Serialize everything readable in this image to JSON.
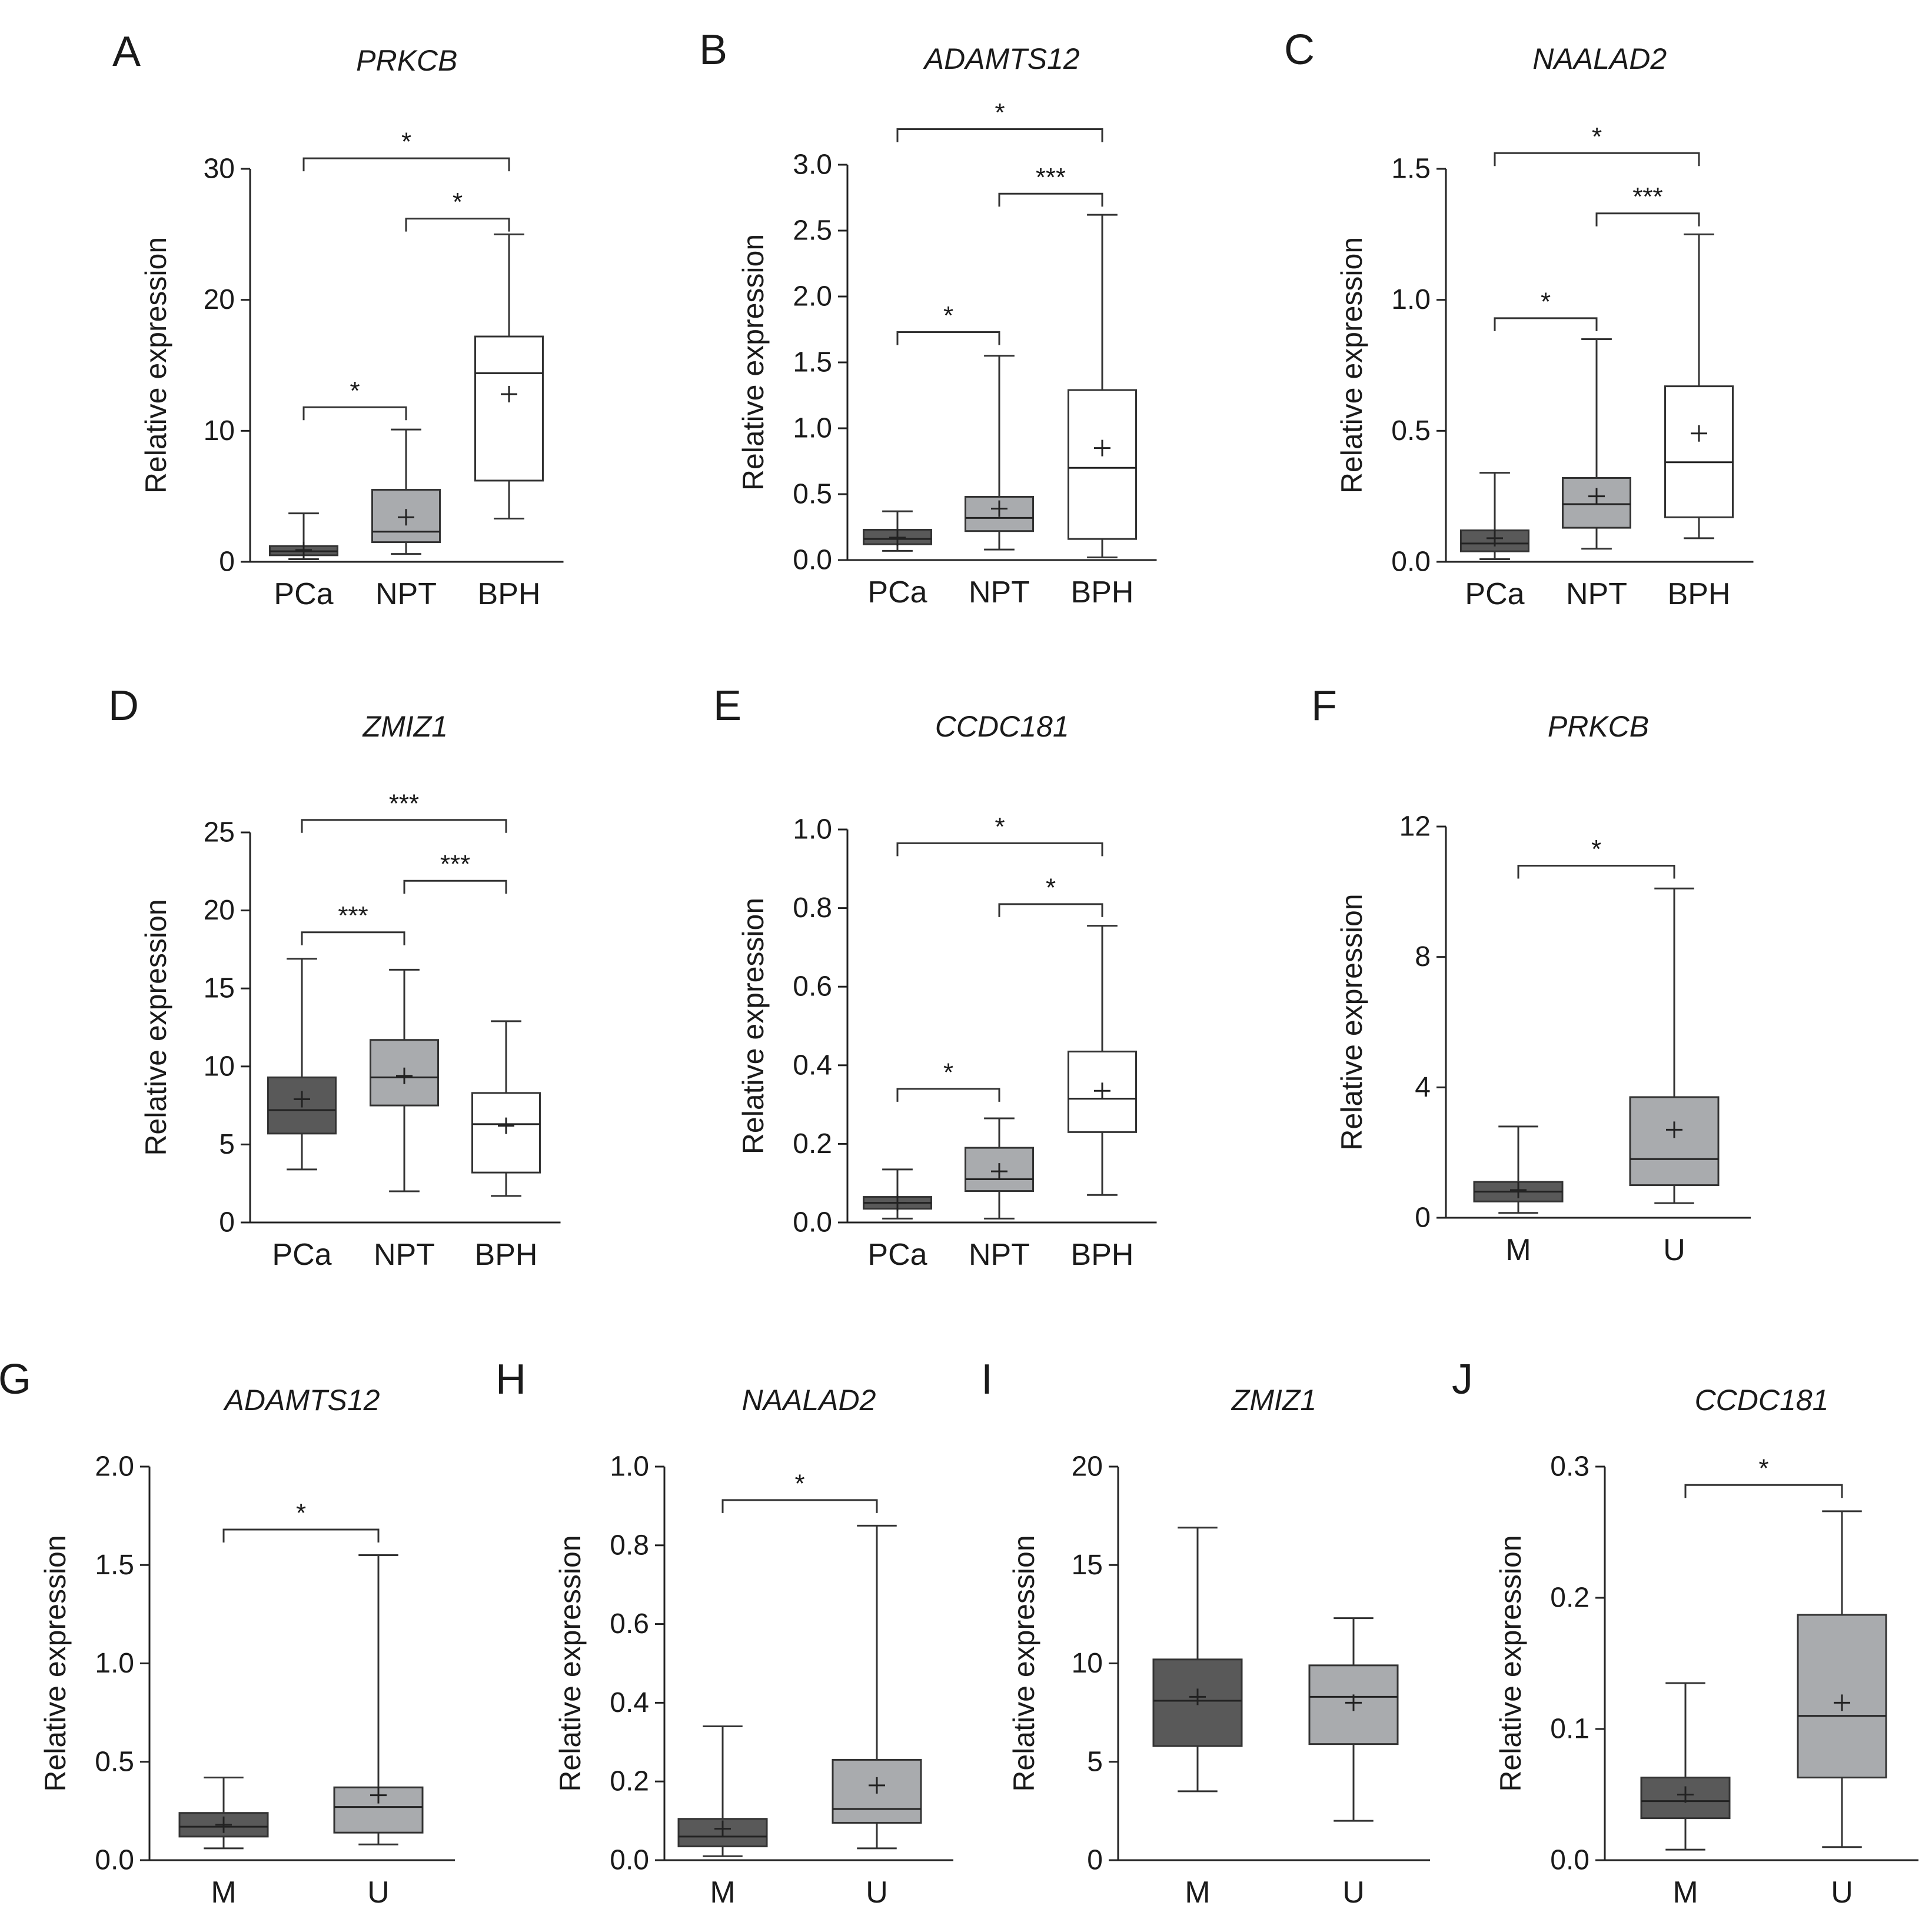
{
  "figure": {
    "y_axis_label": "Relative expression",
    "colors": {
      "PCa": "#595959",
      "NPT": "#a9abae",
      "BPH": "#ffffff",
      "M": "#595959",
      "U": "#a9abae"
    }
  },
  "chart_data": [
    {
      "panel": "A",
      "type": "box",
      "title": "PRKCB",
      "ylabel": "Relative expression",
      "ylim": [
        0,
        30
      ],
      "yticks": [
        "0",
        "10",
        "20",
        "30"
      ],
      "ytick_values": [
        0,
        10,
        20,
        30
      ],
      "categories": [
        "PCa",
        "NPT",
        "BPH"
      ],
      "boxes": [
        {
          "min": 0.2,
          "q1": 0.5,
          "median": 0.8,
          "q3": 1.2,
          "max": 3.7,
          "mean": 0.9
        },
        {
          "min": 0.6,
          "q1": 1.5,
          "median": 2.3,
          "q3": 5.5,
          "max": 10.1,
          "mean": 3.4
        },
        {
          "min": 3.3,
          "q1": 6.2,
          "median": 14.4,
          "q3": 17.2,
          "max": 25.0,
          "mean": 12.8
        }
      ],
      "significance": [
        {
          "from": 0,
          "to": 1,
          "label": "*",
          "level": 11.8
        },
        {
          "from": 1,
          "to": 2,
          "label": "*",
          "level": 26.2
        },
        {
          "from": 0,
          "to": 2,
          "label": "*",
          "level": 30.8
        }
      ]
    },
    {
      "panel": "B",
      "type": "box",
      "title": "ADAMTS12",
      "ylabel": "Relative expression",
      "ylim": [
        0,
        3.0
      ],
      "yticks": [
        "0.0",
        "0.5",
        "1.0",
        "1.5",
        "2.0",
        "2.5",
        "3.0"
      ],
      "ytick_values": [
        0,
        0.5,
        1.0,
        1.5,
        2.0,
        2.5,
        3.0
      ],
      "categories": [
        "PCa",
        "NPT",
        "BPH"
      ],
      "boxes": [
        {
          "min": 0.07,
          "q1": 0.12,
          "median": 0.16,
          "q3": 0.23,
          "max": 0.37,
          "mean": 0.17
        },
        {
          "min": 0.08,
          "q1": 0.22,
          "median": 0.32,
          "q3": 0.48,
          "max": 1.55,
          "mean": 0.39
        },
        {
          "min": 0.02,
          "q1": 0.16,
          "median": 0.7,
          "q3": 1.29,
          "max": 2.62,
          "mean": 0.85
        }
      ],
      "significance": [
        {
          "from": 0,
          "to": 1,
          "label": "*",
          "level": 1.73
        },
        {
          "from": 1,
          "to": 2,
          "label": "***",
          "level": 2.78
        },
        {
          "from": 0,
          "to": 2,
          "label": "*",
          "level": 3.27
        }
      ]
    },
    {
      "panel": "C",
      "type": "box",
      "title": "NAALAD2",
      "ylabel": "Relative expression",
      "ylim": [
        0,
        1.5
      ],
      "yticks": [
        "0.0",
        "0.5",
        "1.0",
        "1.5"
      ],
      "ytick_values": [
        0,
        0.5,
        1.0,
        1.5
      ],
      "categories": [
        "PCa",
        "NPT",
        "BPH"
      ],
      "boxes": [
        {
          "min": 0.01,
          "q1": 0.04,
          "median": 0.07,
          "q3": 0.12,
          "max": 0.34,
          "mean": 0.09
        },
        {
          "min": 0.05,
          "q1": 0.13,
          "median": 0.22,
          "q3": 0.32,
          "max": 0.85,
          "mean": 0.25
        },
        {
          "min": 0.09,
          "q1": 0.17,
          "median": 0.38,
          "q3": 0.67,
          "max": 1.25,
          "mean": 0.49
        }
      ],
      "significance": [
        {
          "from": 0,
          "to": 1,
          "label": "*",
          "level": 0.93
        },
        {
          "from": 1,
          "to": 2,
          "label": "***",
          "level": 1.33
        },
        {
          "from": 0,
          "to": 2,
          "label": "*",
          "level": 1.56
        }
      ]
    },
    {
      "panel": "D",
      "type": "box",
      "title": "ZMIZ1",
      "ylabel": "Relative expression",
      "ylim": [
        0,
        25
      ],
      "yticks": [
        "0",
        "5",
        "10",
        "15",
        "20",
        "25"
      ],
      "ytick_values": [
        0,
        5,
        10,
        15,
        20,
        25
      ],
      "categories": [
        "PCa",
        "NPT",
        "BPH"
      ],
      "boxes": [
        {
          "min": 3.4,
          "q1": 5.7,
          "median": 7.2,
          "q3": 9.3,
          "max": 16.9,
          "mean": 7.9
        },
        {
          "min": 2.0,
          "q1": 7.5,
          "median": 9.3,
          "q3": 11.7,
          "max": 16.2,
          "mean": 9.4
        },
        {
          "min": 1.7,
          "q1": 3.2,
          "median": 6.3,
          "q3": 8.3,
          "max": 12.9,
          "mean": 6.2
        }
      ],
      "significance": [
        {
          "from": 0,
          "to": 1,
          "label": "***",
          "level": 18.6
        },
        {
          "from": 1,
          "to": 2,
          "label": "***",
          "level": 21.9
        },
        {
          "from": 0,
          "to": 2,
          "label": "***",
          "level": 25.8
        }
      ]
    },
    {
      "panel": "E",
      "type": "box",
      "title": "CCDC181",
      "ylabel": "Relative expression",
      "ylim": [
        0,
        1.0
      ],
      "yticks": [
        "0.0",
        "0.2",
        "0.4",
        "0.6",
        "0.8",
        "1.0"
      ],
      "ytick_values": [
        0,
        0.2,
        0.4,
        0.6,
        0.8,
        1.0
      ],
      "categories": [
        "PCa",
        "NPT",
        "BPH"
      ],
      "boxes": [
        {
          "min": 0.01,
          "q1": 0.035,
          "median": 0.05,
          "q3": 0.065,
          "max": 0.135,
          "mean": 0.05
        },
        {
          "min": 0.01,
          "q1": 0.08,
          "median": 0.11,
          "q3": 0.19,
          "max": 0.265,
          "mean": 0.13
        },
        {
          "min": 0.07,
          "q1": 0.23,
          "median": 0.315,
          "q3": 0.435,
          "max": 0.755,
          "mean": 0.335
        }
      ],
      "significance": [
        {
          "from": 0,
          "to": 1,
          "label": "*",
          "level": 0.34
        },
        {
          "from": 1,
          "to": 2,
          "label": "*",
          "level": 0.81
        },
        {
          "from": 0,
          "to": 2,
          "label": "*",
          "level": 0.965
        }
      ]
    },
    {
      "panel": "F",
      "type": "box",
      "title": "PRKCB",
      "ylabel": "Relative expression",
      "ylim": [
        0,
        12
      ],
      "yticks": [
        "0",
        "4",
        "8",
        "12"
      ],
      "ytick_values": [
        0,
        4,
        8,
        12
      ],
      "categories": [
        "M",
        "U"
      ],
      "boxes": [
        {
          "min": 0.15,
          "q1": 0.5,
          "median": 0.8,
          "q3": 1.1,
          "max": 2.8,
          "mean": 0.85
        },
        {
          "min": 0.45,
          "q1": 1.0,
          "median": 1.8,
          "q3": 3.7,
          "max": 10.1,
          "mean": 2.7
        }
      ],
      "significance": [
        {
          "from": 0,
          "to": 1,
          "label": "*",
          "level": 10.8
        }
      ]
    },
    {
      "panel": "G",
      "type": "box",
      "title": "ADAMTS12",
      "ylabel": "Relative expression",
      "ylim": [
        0,
        2.0
      ],
      "yticks": [
        "0.0",
        "0.5",
        "1.0",
        "1.5",
        "2.0"
      ],
      "ytick_values": [
        0,
        0.5,
        1.0,
        1.5,
        2.0
      ],
      "categories": [
        "M",
        "U"
      ],
      "boxes": [
        {
          "min": 0.06,
          "q1": 0.12,
          "median": 0.17,
          "q3": 0.24,
          "max": 0.42,
          "mean": 0.18
        },
        {
          "min": 0.08,
          "q1": 0.14,
          "median": 0.27,
          "q3": 0.37,
          "max": 1.55,
          "mean": 0.33
        }
      ],
      "significance": [
        {
          "from": 0,
          "to": 1,
          "label": "*",
          "level": 1.68
        }
      ]
    },
    {
      "panel": "H",
      "type": "box",
      "title": "NAALAD2",
      "ylabel": "Relative expression",
      "ylim": [
        0,
        1.0
      ],
      "yticks": [
        "0.0",
        "0.2",
        "0.4",
        "0.6",
        "0.8",
        "1.0"
      ],
      "ytick_values": [
        0,
        0.2,
        0.4,
        0.6,
        0.8,
        1.0
      ],
      "categories": [
        "M",
        "U"
      ],
      "boxes": [
        {
          "min": 0.01,
          "q1": 0.035,
          "median": 0.06,
          "q3": 0.105,
          "max": 0.34,
          "mean": 0.08
        },
        {
          "min": 0.03,
          "q1": 0.095,
          "median": 0.13,
          "q3": 0.255,
          "max": 0.85,
          "mean": 0.19
        }
      ],
      "significance": [
        {
          "from": 0,
          "to": 1,
          "label": "*",
          "level": 0.915
        }
      ]
    },
    {
      "panel": "I",
      "type": "box",
      "title": "ZMIZ1",
      "ylabel": "Relative expression",
      "ylim": [
        0,
        20
      ],
      "yticks": [
        "0",
        "5",
        "10",
        "15",
        "20"
      ],
      "ytick_values": [
        0,
        5,
        10,
        15,
        20
      ],
      "categories": [
        "M",
        "U"
      ],
      "boxes": [
        {
          "min": 3.5,
          "q1": 5.8,
          "median": 8.1,
          "q3": 10.2,
          "max": 16.9,
          "mean": 8.3
        },
        {
          "min": 2.0,
          "q1": 5.9,
          "median": 8.3,
          "q3": 9.9,
          "max": 12.3,
          "mean": 8.0
        }
      ],
      "significance": []
    },
    {
      "panel": "J",
      "type": "box",
      "title": "CCDC181",
      "ylabel": "Relative expression",
      "ylim": [
        0,
        0.3
      ],
      "yticks": [
        "0.0",
        "0.1",
        "0.2",
        "0.3"
      ],
      "ytick_values": [
        0,
        0.1,
        0.2,
        0.3
      ],
      "categories": [
        "M",
        "U"
      ],
      "boxes": [
        {
          "min": 0.008,
          "q1": 0.032,
          "median": 0.045,
          "q3": 0.063,
          "max": 0.135,
          "mean": 0.05
        },
        {
          "min": 0.01,
          "q1": 0.063,
          "median": 0.11,
          "q3": 0.187,
          "max": 0.266,
          "mean": 0.12
        }
      ],
      "significance": [
        {
          "from": 0,
          "to": 1,
          "label": "*",
          "level": 0.286
        }
      ]
    }
  ]
}
